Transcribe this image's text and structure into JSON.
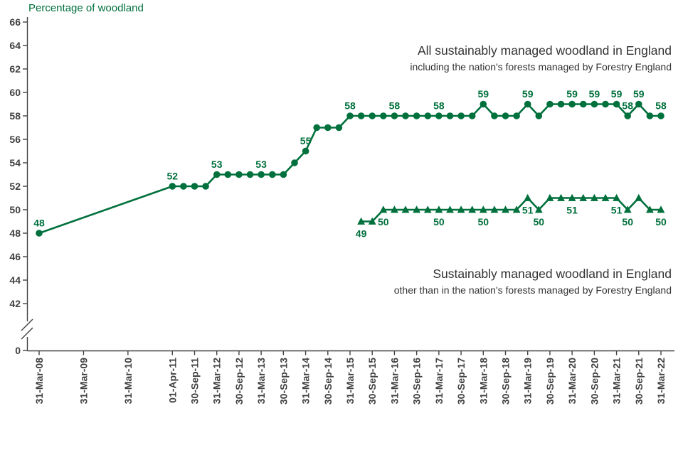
{
  "chart_data": {
    "type": "line",
    "title": "Percentage of woodland",
    "unit": "percent",
    "colors": {
      "series": "#00703c",
      "axis": "#414042",
      "annotation": "#333333"
    },
    "y_axis": {
      "ticks": [
        66,
        64,
        62,
        60,
        58,
        56,
        54,
        52,
        50,
        48,
        46,
        44,
        42,
        0
      ],
      "axis_break_between": [
        0,
        42
      ]
    },
    "x_axis": {
      "ticks": [
        {
          "label": "31-Mar-08",
          "m": 0
        },
        {
          "label": "31-Mar-09",
          "m": 12
        },
        {
          "label": "31-Mar-10",
          "m": 24
        },
        {
          "label": "01-Apr-11",
          "m": 36
        },
        {
          "label": "30-Sep-11",
          "m": 42
        },
        {
          "label": "31-Mar-12",
          "m": 48
        },
        {
          "label": "30-Sep-12",
          "m": 54
        },
        {
          "label": "31-Mar-13",
          "m": 60
        },
        {
          "label": "30-Sep-13",
          "m": 66
        },
        {
          "label": "31-Mar-14",
          "m": 72
        },
        {
          "label": "30-Sep-14",
          "m": 78
        },
        {
          "label": "31-Mar-15",
          "m": 84
        },
        {
          "label": "30-Sep-15",
          "m": 90
        },
        {
          "label": "31-Mar-16",
          "m": 96
        },
        {
          "label": "30-Sep-16",
          "m": 102
        },
        {
          "label": "31-Mar-17",
          "m": 108
        },
        {
          "label": "30-Sep-17",
          "m": 114
        },
        {
          "label": "31-Mar-18",
          "m": 120
        },
        {
          "label": "30-Sep-18",
          "m": 126
        },
        {
          "label": "31-Mar-19",
          "m": 132
        },
        {
          "label": "30-Sep-19",
          "m": 138
        },
        {
          "label": "31-Mar-20",
          "m": 144
        },
        {
          "label": "30-Sep-20",
          "m": 150
        },
        {
          "label": "31-Mar-21",
          "m": 156
        },
        {
          "label": "30-Sep-21",
          "m": 162
        },
        {
          "label": "31-Mar-22",
          "m": 168
        }
      ]
    },
    "series": [
      {
        "name": "All sustainably managed woodland in England",
        "subtitle": "including the nation's forests managed by Forestry England",
        "marker": "circle",
        "label_position": "above",
        "points": [
          [
            0,
            48,
            "48"
          ],
          [
            36,
            52,
            "52"
          ],
          [
            39,
            52
          ],
          [
            42,
            52
          ],
          [
            45,
            52
          ],
          [
            48,
            53,
            "53"
          ],
          [
            51,
            53
          ],
          [
            54,
            53
          ],
          [
            57,
            53
          ],
          [
            60,
            53,
            "53"
          ],
          [
            63,
            53
          ],
          [
            66,
            53
          ],
          [
            69,
            54
          ],
          [
            72,
            55,
            "55"
          ],
          [
            75,
            57
          ],
          [
            78,
            57
          ],
          [
            81,
            57
          ],
          [
            84,
            58,
            "58"
          ],
          [
            87,
            58
          ],
          [
            90,
            58
          ],
          [
            93,
            58
          ],
          [
            96,
            58,
            "58"
          ],
          [
            99,
            58
          ],
          [
            102,
            58
          ],
          [
            105,
            58
          ],
          [
            108,
            58,
            "58"
          ],
          [
            111,
            58
          ],
          [
            114,
            58
          ],
          [
            117,
            58
          ],
          [
            120,
            59,
            "59"
          ],
          [
            123,
            58
          ],
          [
            126,
            58
          ],
          [
            129,
            58
          ],
          [
            132,
            59,
            "59"
          ],
          [
            135,
            58
          ],
          [
            138,
            59
          ],
          [
            141,
            59
          ],
          [
            144,
            59,
            "59"
          ],
          [
            147,
            59
          ],
          [
            150,
            59,
            "59"
          ],
          [
            153,
            59
          ],
          [
            156,
            59,
            "59"
          ],
          [
            159,
            58,
            "58"
          ],
          [
            162,
            59,
            "59"
          ],
          [
            165,
            58
          ],
          [
            168,
            58,
            "58"
          ]
        ]
      },
      {
        "name": "Sustainably managed woodland in England",
        "subtitle": "other than in the nation's forests managed by Forestry England",
        "marker": "triangle",
        "label_position": "below",
        "points": [
          [
            87,
            49,
            "49"
          ],
          [
            90,
            49
          ],
          [
            93,
            50,
            "50"
          ],
          [
            96,
            50
          ],
          [
            99,
            50
          ],
          [
            102,
            50
          ],
          [
            105,
            50
          ],
          [
            108,
            50,
            "50"
          ],
          [
            111,
            50
          ],
          [
            114,
            50
          ],
          [
            117,
            50
          ],
          [
            120,
            50,
            "50"
          ],
          [
            123,
            50
          ],
          [
            126,
            50
          ],
          [
            129,
            50
          ],
          [
            132,
            51,
            "51"
          ],
          [
            135,
            50,
            "50"
          ],
          [
            138,
            51
          ],
          [
            141,
            51
          ],
          [
            144,
            51,
            "51"
          ],
          [
            147,
            51
          ],
          [
            150,
            51
          ],
          [
            153,
            51
          ],
          [
            156,
            51,
            "51"
          ],
          [
            159,
            50,
            "50"
          ],
          [
            162,
            51
          ],
          [
            165,
            50
          ],
          [
            168,
            50,
            "50"
          ]
        ]
      }
    ]
  }
}
